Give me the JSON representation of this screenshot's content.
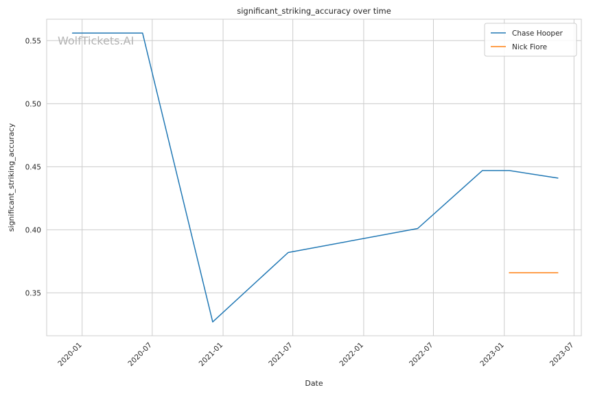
{
  "chart_data": {
    "type": "line",
    "title": "significant_striking_accuracy over time",
    "xlabel": "Date",
    "ylabel": "significant_striking_accuracy",
    "watermark": "WolfTickets.AI",
    "grid": true,
    "legend_position": "top-right",
    "x_ticks": [
      "2020-01",
      "2020-07",
      "2021-01",
      "2021-07",
      "2022-01",
      "2022-07",
      "2023-01",
      "2023-07"
    ],
    "y_ticks": [
      "0.35",
      "0.40",
      "0.45",
      "0.50",
      "0.55"
    ],
    "xlim": [
      "2019-10-01",
      "2023-07-20"
    ],
    "ylim": [
      0.316,
      0.567
    ],
    "series": [
      {
        "name": "Chase Hooper",
        "color": "#1f77b4",
        "points": [
          {
            "x": "2019-12-07",
            "y": 0.556
          },
          {
            "x": "2020-06-06",
            "y": 0.556
          },
          {
            "x": "2020-12-05",
            "y": 0.327
          },
          {
            "x": "2021-06-19",
            "y": 0.382
          },
          {
            "x": "2022-05-21",
            "y": 0.401
          },
          {
            "x": "2022-11-05",
            "y": 0.447
          },
          {
            "x": "2023-01-14",
            "y": 0.447
          },
          {
            "x": "2023-05-20",
            "y": 0.441
          }
        ]
      },
      {
        "name": "Nick Fiore",
        "color": "#ff7f0e",
        "points": [
          {
            "x": "2023-01-14",
            "y": 0.366
          },
          {
            "x": "2023-05-20",
            "y": 0.366
          }
        ]
      }
    ]
  }
}
